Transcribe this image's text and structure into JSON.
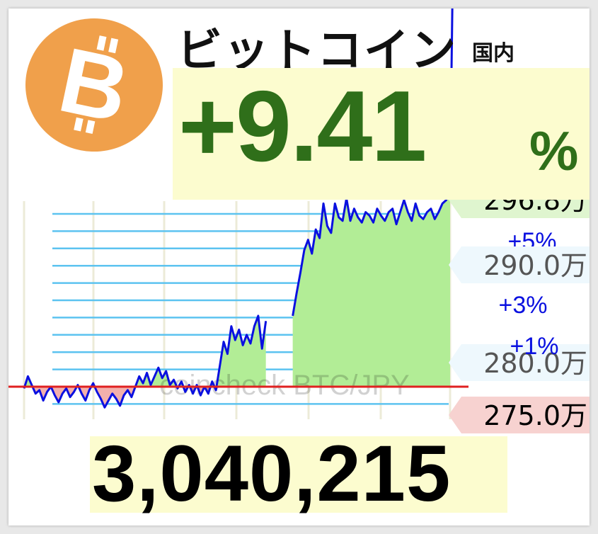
{
  "header": {
    "title": "ビットコイン",
    "subtitle": "国内",
    "change": "+9.41",
    "change_unit": "%",
    "logo_glyph": "B",
    "logo_icon": "bitcoin-logo-icon"
  },
  "price": "3,040,215",
  "watermark": "coincheck BTC/JPY",
  "colors": {
    "logo_orange": "#f0a04b",
    "change_green": "#2f6f1a",
    "highlight_yellow": "#fcfccf",
    "series_line": "#0a10e0",
    "fill_up": "#b2ed96",
    "fill_down": "#f3b0ac",
    "baseline_red": "#e02020",
    "gridline": "#5cc3f0",
    "vertical_grid": "#ecebd8"
  },
  "chart_data": {
    "type": "line",
    "series": [
      {
        "values": [
          2.759,
          2.766,
          2.761,
          2.756,
          2.758,
          2.752,
          2.757,
          2.76,
          2.755,
          2.751,
          2.756,
          2.759,
          2.754,
          2.757,
          2.761,
          2.756,
          2.752,
          2.758,
          2.762,
          2.757,
          2.753,
          2.748,
          2.752,
          2.756,
          2.753,
          2.749,
          2.755,
          2.758,
          2.754,
          2.76,
          2.766,
          2.762,
          2.768,
          2.761,
          2.766,
          2.771,
          2.765,
          2.769,
          2.761,
          2.764,
          2.759,
          2.763,
          2.757,
          2.761,
          2.756,
          2.761,
          2.755,
          2.76,
          2.756,
          2.763,
          2.758,
          2.772,
          2.786,
          2.779,
          2.795,
          2.787,
          2.793,
          2.784,
          2.79,
          2.785,
          2.795,
          2.801,
          2.782,
          2.798,
          null,
          null,
          null,
          null,
          null,
          null,
          2.801,
          2.814,
          2.826,
          2.839,
          2.845,
          2.837,
          2.851,
          2.846,
          2.866,
          2.853,
          2.849,
          2.866,
          2.858,
          2.856,
          2.869,
          2.856,
          2.863,
          2.858,
          2.855,
          2.861,
          2.859,
          2.855,
          2.863,
          2.859,
          2.856,
          2.861,
          2.863,
          2.854,
          2.861,
          2.868,
          2.861,
          2.856,
          2.866,
          2.859,
          2.857,
          2.861,
          2.863,
          2.857,
          2.861,
          2.866,
          2.868,
          2.88
        ],
        "endpoint": 2.968,
        "endpoint_label": "296.8万"
      }
    ],
    "reference_price": 2.76,
    "gridlines": [
      2.75,
      2.76,
      2.77,
      2.78,
      2.79,
      2.8,
      2.81,
      2.82,
      2.83,
      2.84,
      2.85,
      2.86
    ],
    "price_tags": [
      {
        "value": 2.968,
        "label": "296.8万",
        "pct_label": "+5%",
        "tone": "green"
      },
      {
        "value": 2.9,
        "label": "290.0万",
        "pct_label": "+3%",
        "tone": "blue"
      },
      {
        "value": 2.8,
        "label": "280.0万",
        "pct_label": "+1%",
        "tone": "blue"
      },
      {
        "value": 2.75,
        "label": "275.0万",
        "pct_label": "",
        "tone": "red"
      }
    ],
    "ylim": [
      2.745,
      2.968
    ],
    "grid": true,
    "watermark": "coincheck BTC/JPY"
  }
}
